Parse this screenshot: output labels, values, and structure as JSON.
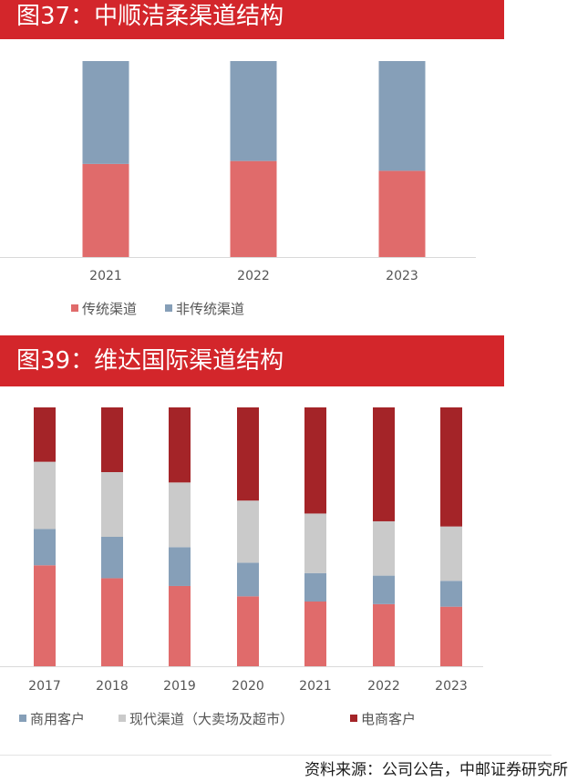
{
  "chart_data": [
    {
      "type": "bar",
      "stacked": true,
      "normalized": true,
      "title": "图37：中顺洁柔渠道结构",
      "categories": [
        "2021",
        "2022",
        "2023"
      ],
      "series": [
        {
          "name": "传统渠道",
          "color": "#e06b6b",
          "values": [
            47.5,
            49,
            44
          ]
        },
        {
          "name": "非传统渠道",
          "color": "#869fb8",
          "values": [
            52.5,
            51,
            56
          ]
        }
      ],
      "legend_position": "bottom-left",
      "grid": false
    },
    {
      "type": "bar",
      "stacked": true,
      "normalized": true,
      "title": "图39：维达国际渠道结构",
      "categories": [
        "2017",
        "2018",
        "2019",
        "2020",
        "2021",
        "2022",
        "2023"
      ],
      "series": [
        {
          "name": "商用客户",
          "color": "#869fb8",
          "values": [
            14,
            16,
            15,
            13,
            11,
            11,
            10
          ]
        },
        {
          "name": "现代渠道（大卖场及超市）",
          "color": "#cacaca",
          "values": [
            26,
            25,
            25,
            24,
            23,
            21,
            21
          ]
        },
        {
          "name": "电商客户",
          "color": "#a42428",
          "values": [
            21,
            25,
            29,
            36,
            41,
            44,
            46
          ]
        }
      ],
      "base_series": {
        "color": "#e06b6b",
        "values": [
          39,
          34,
          31,
          27,
          25,
          24,
          23
        ]
      },
      "legend_position": "bottom-left",
      "grid": false
    }
  ],
  "footer": {
    "source": "资料来源：公司公告，中邮证券研究所"
  }
}
